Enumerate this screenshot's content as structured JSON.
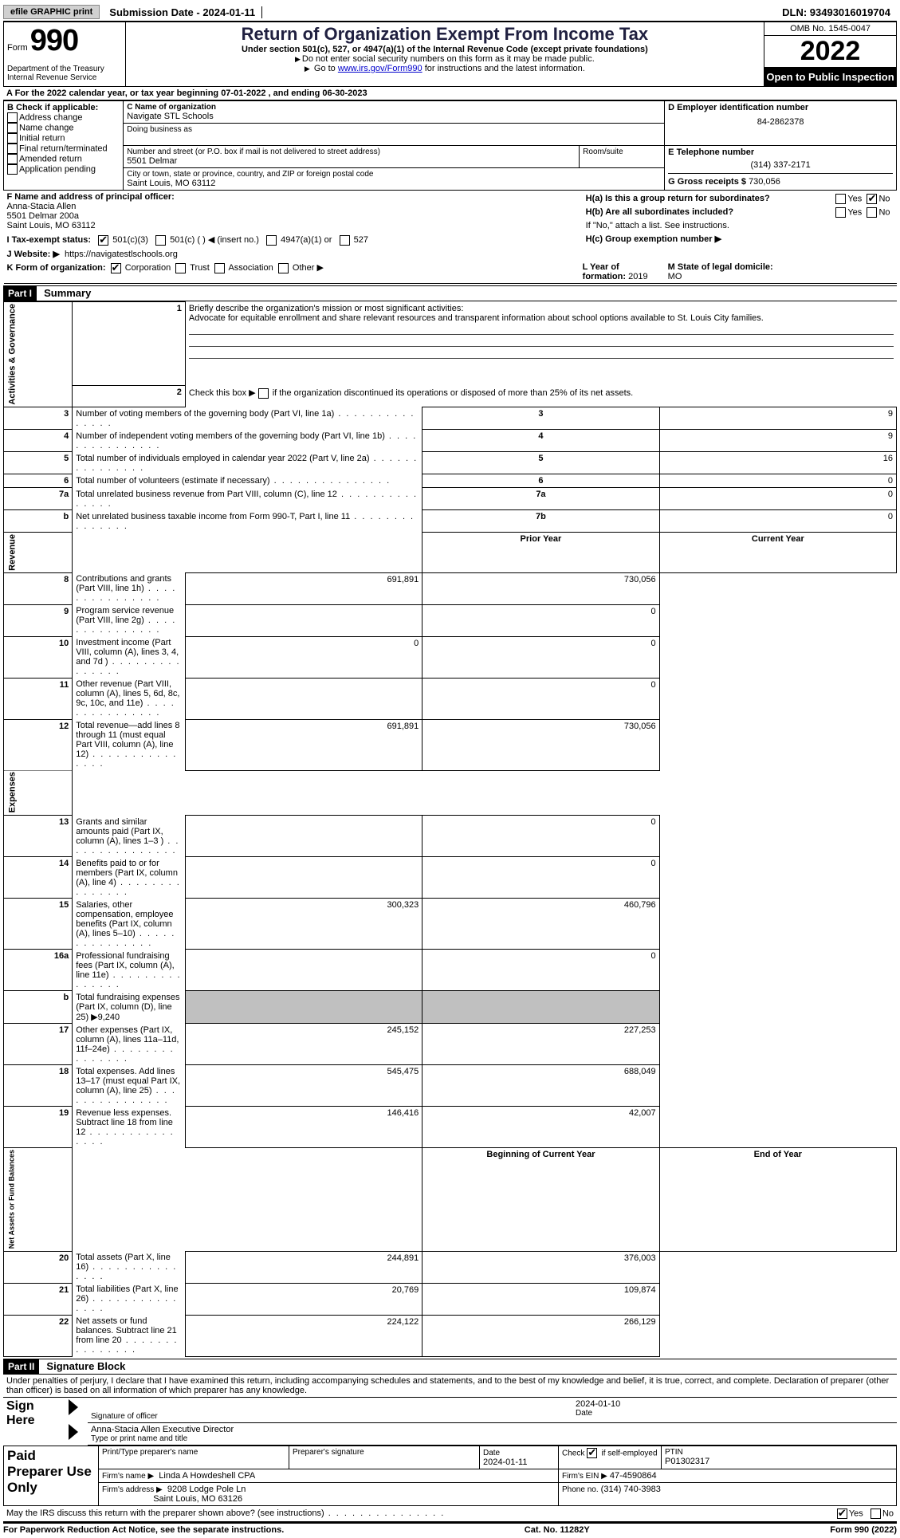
{
  "topbar": {
    "efile_label": "efile GRAPHIC print",
    "submission_date_label": "Submission Date - 2024-01-11",
    "dln_label": "DLN: 93493016019704"
  },
  "header": {
    "form_word": "Form",
    "form_number": "990",
    "dept": "Department of the Treasury",
    "irs": "Internal Revenue Service",
    "title": "Return of Organization Exempt From Income Tax",
    "subtitle": "Under section 501(c), 527, or 4947(a)(1) of the Internal Revenue Code (except private foundations)",
    "note1": "Do not enter social security numbers on this form as it may be made public.",
    "note2_pre": "Go to ",
    "note2_link": "www.irs.gov/Form990",
    "note2_post": " for instructions and the latest information.",
    "omb": "OMB No. 1545-0047",
    "year": "2022",
    "inspection": "Open to Public Inspection"
  },
  "period": {
    "line_a": "A For the 2022 calendar year, or tax year beginning 07-01-2022    , and ending 06-30-2023"
  },
  "sectionB": {
    "label": "B Check if applicable:",
    "items": [
      "Address change",
      "Name change",
      "Initial return",
      "Final return/terminated",
      "Amended return",
      "Application pending"
    ]
  },
  "sectionC": {
    "name_label": "C Name of organization",
    "name": "Navigate STL Schools",
    "dba_label": "Doing business as",
    "street_label": "Number and street (or P.O. box if mail is not delivered to street address)",
    "room_label": "Room/suite",
    "street": "5501 Delmar",
    "city_label": "City or town, state or province, country, and ZIP or foreign postal code",
    "city": "Saint Louis, MO  63112"
  },
  "sectionD": {
    "label": "D Employer identification number",
    "value": "84-2862378"
  },
  "sectionE": {
    "label": "E Telephone number",
    "value": "(314) 337-2171"
  },
  "sectionG": {
    "label": "G Gross receipts $",
    "value": "730,056"
  },
  "sectionF": {
    "label": "F Name and address of principal officer:",
    "name": "Anna-Stacia Allen",
    "addr1": "5501 Delmar 200a",
    "addr2": "Saint Louis, MO  63112"
  },
  "sectionH": {
    "a": "H(a)  Is this a group return for subordinates?",
    "b": "H(b)  Are all subordinates included?",
    "bnote": "If \"No,\" attach a list. See instructions.",
    "c": "H(c)  Group exemption number ▶",
    "yes": "Yes",
    "no": "No"
  },
  "sectionI": {
    "label": "I  Tax-exempt status:",
    "opts": [
      "501(c)(3)",
      "501(c) (  ) ◀ (insert no.)",
      "4947(a)(1) or",
      "527"
    ]
  },
  "sectionJ": {
    "label": "J  Website: ▶",
    "value": "https://navigatestlschools.org"
  },
  "sectionK": {
    "label": "K Form of organization:",
    "opts": [
      "Corporation",
      "Trust",
      "Association",
      "Other ▶"
    ]
  },
  "sectionL": {
    "label": "L Year of formation:",
    "value": "2019"
  },
  "sectionM": {
    "label": "M State of legal domicile:",
    "value": "MO"
  },
  "part1": {
    "header": "Part I",
    "title": "Summary"
  },
  "summary": {
    "side_ag": "Activities & Governance",
    "side_rev": "Revenue",
    "side_exp": "Expenses",
    "side_na": "Net Assets or Fund Balances",
    "l1_label": "Briefly describe the organization's mission or most significant activities:",
    "l1_text": "Advocate for equitable enrollment and share relevant resources and transparent information about school options available to St. Louis City families.",
    "l2_label": "Check this box ▶",
    "l2_text": " if the organization discontinued its operations or disposed of more than 25% of its net assets.",
    "rows_ag": [
      {
        "n": "3",
        "t": "Number of voting members of the governing body (Part VI, line 1a)",
        "b": "3",
        "v": "9"
      },
      {
        "n": "4",
        "t": "Number of independent voting members of the governing body (Part VI, line 1b)",
        "b": "4",
        "v": "9"
      },
      {
        "n": "5",
        "t": "Total number of individuals employed in calendar year 2022 (Part V, line 2a)",
        "b": "5",
        "v": "16"
      },
      {
        "n": "6",
        "t": "Total number of volunteers (estimate if necessary)",
        "b": "6",
        "v": "0"
      },
      {
        "n": "7a",
        "t": "Total unrelated business revenue from Part VIII, column (C), line 12",
        "b": "7a",
        "v": "0"
      },
      {
        "n": "b",
        "t": "Net unrelated business taxable income from Form 990-T, Part I, line 11",
        "b": "7b",
        "v": "0"
      }
    ],
    "col_prior": "Prior Year",
    "col_current": "Current Year",
    "rows_rev": [
      {
        "n": "8",
        "t": "Contributions and grants (Part VIII, line 1h)",
        "p": "691,891",
        "c": "730,056"
      },
      {
        "n": "9",
        "t": "Program service revenue (Part VIII, line 2g)",
        "p": "",
        "c": "0"
      },
      {
        "n": "10",
        "t": "Investment income (Part VIII, column (A), lines 3, 4, and 7d )",
        "p": "0",
        "c": "0"
      },
      {
        "n": "11",
        "t": "Other revenue (Part VIII, column (A), lines 5, 6d, 8c, 9c, 10c, and 11e)",
        "p": "",
        "c": "0"
      },
      {
        "n": "12",
        "t": "Total revenue—add lines 8 through 11 (must equal Part VIII, column (A), line 12)",
        "p": "691,891",
        "c": "730,056"
      }
    ],
    "rows_exp": [
      {
        "n": "13",
        "t": "Grants and similar amounts paid (Part IX, column (A), lines 1–3 )",
        "p": "",
        "c": "0"
      },
      {
        "n": "14",
        "t": "Benefits paid to or for members (Part IX, column (A), line 4)",
        "p": "",
        "c": "0"
      },
      {
        "n": "15",
        "t": "Salaries, other compensation, employee benefits (Part IX, column (A), lines 5–10)",
        "p": "300,323",
        "c": "460,796"
      },
      {
        "n": "16a",
        "t": "Professional fundraising fees (Part IX, column (A), line 11e)",
        "p": "",
        "c": "0"
      },
      {
        "n": "b",
        "t": "Total fundraising expenses (Part IX, column (D), line 25) ▶9,240",
        "shade": true
      },
      {
        "n": "17",
        "t": "Other expenses (Part IX, column (A), lines 11a–11d, 11f–24e)",
        "p": "245,152",
        "c": "227,253"
      },
      {
        "n": "18",
        "t": "Total expenses. Add lines 13–17 (must equal Part IX, column (A), line 25)",
        "p": "545,475",
        "c": "688,049"
      },
      {
        "n": "19",
        "t": "Revenue less expenses. Subtract line 18 from line 12",
        "p": "146,416",
        "c": "42,007"
      }
    ],
    "col_begin": "Beginning of Current Year",
    "col_end": "End of Year",
    "rows_na": [
      {
        "n": "20",
        "t": "Total assets (Part X, line 16)",
        "p": "244,891",
        "c": "376,003"
      },
      {
        "n": "21",
        "t": "Total liabilities (Part X, line 26)",
        "p": "20,769",
        "c": "109,874"
      },
      {
        "n": "22",
        "t": "Net assets or fund balances. Subtract line 21 from line 20",
        "p": "224,122",
        "c": "266,129"
      }
    ]
  },
  "part2": {
    "header": "Part II",
    "title": "Signature Block",
    "perjury": "Under penalties of perjury, I declare that I have examined this return, including accompanying schedules and statements, and to the best of my knowledge and belief, it is true, correct, and complete. Declaration of preparer (other than officer) is based on all information of which preparer has any knowledge."
  },
  "sign": {
    "here": "Sign Here",
    "sig_label": "Signature of officer",
    "date": "2024-01-10",
    "date_label": "Date",
    "name": "Anna-Stacia Allen  Executive Director",
    "name_label": "Type or print name and title"
  },
  "preparer": {
    "label": "Paid Preparer Use Only",
    "print_name_label": "Print/Type preparer's name",
    "sig_label": "Preparer's signature",
    "date_label": "Date",
    "date": "2024-01-11",
    "check_label": "Check",
    "self_emp": "if self-employed",
    "ptin_label": "PTIN",
    "ptin": "P01302317",
    "firm_name_label": "Firm's name    ▶",
    "firm_name": "Linda A Howdeshell CPA",
    "firm_ein_label": "Firm's EIN ▶",
    "firm_ein": "47-4590864",
    "firm_addr_label": "Firm's address ▶",
    "firm_addr1": "9208 Lodge Pole Ln",
    "firm_addr2": "Saint Louis, MO  63126",
    "phone_label": "Phone no.",
    "phone": "(314) 740-3983"
  },
  "discuss": {
    "text": "May the IRS discuss this return with the preparer shown above? (see instructions)",
    "yes": "Yes",
    "no": "No"
  },
  "footer": {
    "left": "For Paperwork Reduction Act Notice, see the separate instructions.",
    "mid": "Cat. No. 11282Y",
    "right": "Form 990 (2022)"
  }
}
